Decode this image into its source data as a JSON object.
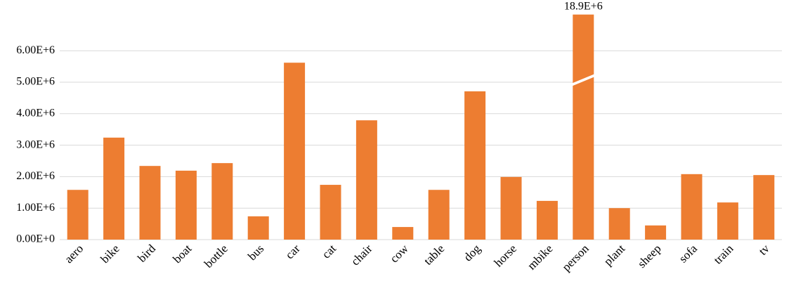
{
  "chart_data": {
    "type": "bar",
    "categories": [
      "aero",
      "bike",
      "bird",
      "boat",
      "bottle",
      "bus",
      "car",
      "cat",
      "chair",
      "cow",
      "table",
      "dog",
      "horse",
      "mbike",
      "person",
      "plant",
      "sheep",
      "sofa",
      "train",
      "tv"
    ],
    "values": [
      1580000,
      3240000,
      2340000,
      2190000,
      2430000,
      740000,
      5620000,
      1740000,
      3790000,
      400000,
      1580000,
      4710000,
      1990000,
      1230000,
      18900000,
      1000000,
      450000,
      2080000,
      1180000,
      2050000
    ],
    "value_labels": [
      null,
      null,
      null,
      null,
      null,
      null,
      null,
      null,
      null,
      null,
      null,
      null,
      null,
      null,
      "18.9E+6",
      null,
      null,
      null,
      null,
      null
    ],
    "color": "#ed7d31",
    "ylim": [
      0,
      7150000
    ],
    "yticks": [
      {
        "value": 0,
        "label": "0.00E+0"
      },
      {
        "value": 1000000,
        "label": "1.00E+6"
      },
      {
        "value": 2000000,
        "label": "2.00E+6"
      },
      {
        "value": 3000000,
        "label": "3.00E+6"
      },
      {
        "value": 4000000,
        "label": "4.00E+6"
      },
      {
        "value": 5000000,
        "label": "5.00E+6"
      },
      {
        "value": 6000000,
        "label": "6.00E+6"
      }
    ],
    "grid": true
  }
}
